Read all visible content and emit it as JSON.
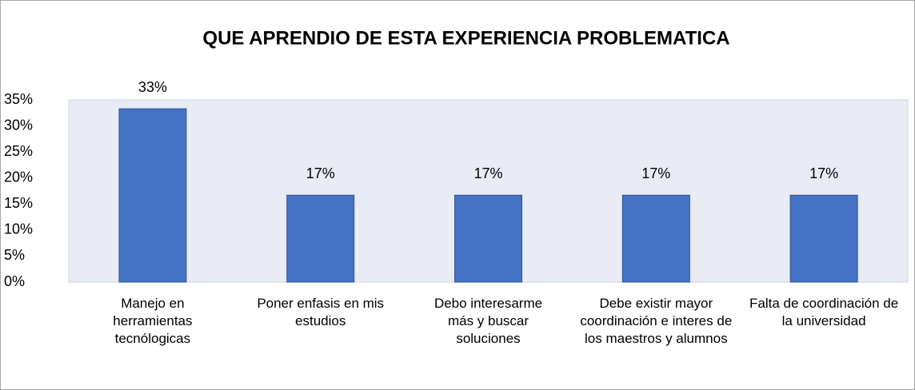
{
  "chart_data": {
    "type": "bar",
    "title": "QUE  APRENDIO DE ESTA EXPERIENCIA PROBLEMATICA",
    "categories": [
      "Manejo en herramientas tecnólogicas",
      "Poner enfasis en mis estudios",
      "Debo interesarme más y buscar soluciones",
      "Debe existir mayor coordinación e interes de los maestros y alumnos",
      "Falta de coordinación de la universidad"
    ],
    "values": [
      33.3,
      16.7,
      16.7,
      16.7,
      16.7
    ],
    "value_labels": [
      "33%",
      "17%",
      "17%",
      "17%",
      "17%"
    ],
    "color": "#4472c4",
    "ylim": [
      0,
      35
    ],
    "yticks": [
      {
        "value": 0,
        "label": "0%"
      },
      {
        "value": 5,
        "label": "5%"
      },
      {
        "value": 10,
        "label": "10%"
      },
      {
        "value": 15,
        "label": "15%"
      },
      {
        "value": 20,
        "label": "20%"
      },
      {
        "value": 25,
        "label": "25%"
      },
      {
        "value": 30,
        "label": "30%"
      },
      {
        "value": 35,
        "label": "35%"
      }
    ],
    "grid": false
  }
}
